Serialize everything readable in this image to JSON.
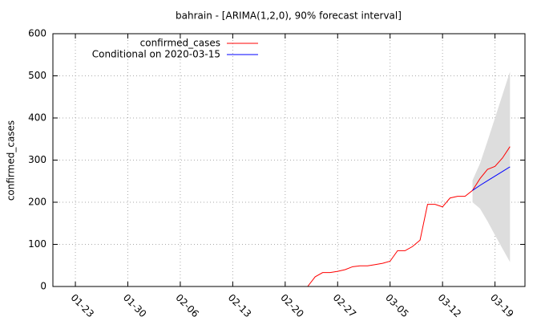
{
  "chart_data": {
    "type": "line",
    "title": "bahrain -  [ARIMA(1,2,0), 90% forecast interval]",
    "y_label": "confirmed_cases",
    "xlim": [
      "01-20",
      "03-23"
    ],
    "xticks": [
      "01-23",
      "01-30",
      "02-06",
      "02-13",
      "02-20",
      "02-27",
      "03-05",
      "03-12",
      "03-19"
    ],
    "ylim": [
      0,
      600
    ],
    "yticks": [
      0,
      100,
      200,
      300,
      400,
      500,
      600
    ],
    "grid": true,
    "legend": "top-left",
    "series": [
      {
        "name": "confirmed_cases",
        "color": "#ff0000",
        "x": [
          "02-23",
          "02-24",
          "02-25",
          "02-26",
          "02-27",
          "02-28",
          "02-29",
          "03-01",
          "03-02",
          "03-03",
          "03-04",
          "03-05",
          "03-06",
          "03-07",
          "03-08",
          "03-09",
          "03-10",
          "03-11",
          "03-12",
          "03-13",
          "03-14",
          "03-15",
          "03-16",
          "03-17",
          "03-18",
          "03-19",
          "03-20",
          "03-21"
        ],
        "values": [
          0,
          23,
          33,
          33,
          36,
          40,
          47,
          49,
          49,
          52,
          55,
          60,
          85,
          85,
          95,
          110,
          195,
          195,
          189,
          210,
          214,
          214,
          228,
          256,
          278,
          285,
          305,
          332
        ]
      },
      {
        "name": "Conditional on 2020-03-15",
        "color": "#0000ff",
        "x": [
          "03-16",
          "03-17",
          "03-18",
          "03-19",
          "03-20",
          "03-21"
        ],
        "values": [
          228,
          240,
          251,
          262,
          273,
          284
        ]
      }
    ],
    "interval": {
      "color": "#dddddd",
      "x": [
        "03-16",
        "03-17",
        "03-18",
        "03-19",
        "03-20",
        "03-21"
      ],
      "upper": [
        252,
        292,
        345,
        400,
        455,
        510
      ],
      "lower": [
        200,
        185,
        155,
        122,
        90,
        58
      ]
    }
  }
}
